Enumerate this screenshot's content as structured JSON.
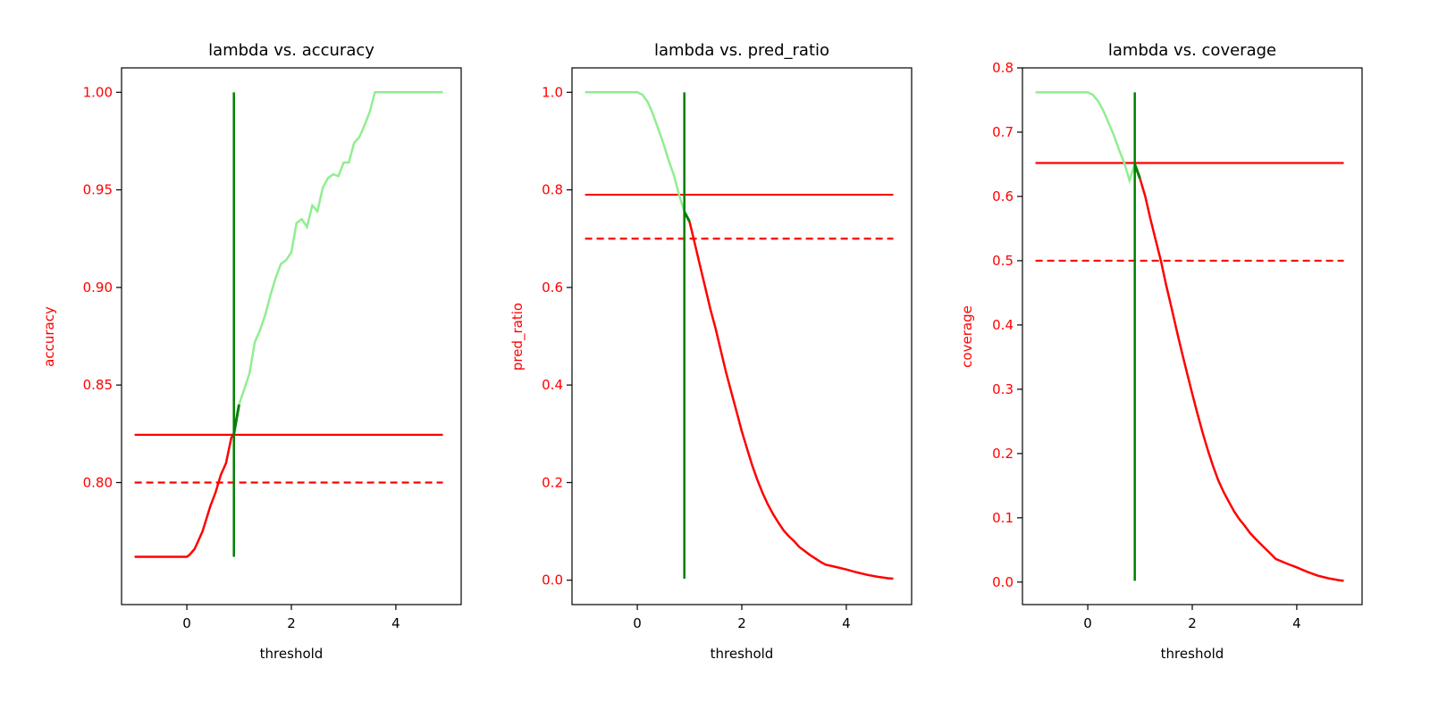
{
  "chart_data": [
    {
      "type": "line",
      "title": "lambda vs. accuracy",
      "xlabel": "threshold",
      "ylabel": "accuracy",
      "xlim": [
        -1.25,
        5.25
      ],
      "ylim": [
        0.7375,
        1.0125
      ],
      "xticks": [
        0,
        2,
        4
      ],
      "xtick_labels": [
        "0",
        "2",
        "4"
      ],
      "yticks": [
        0.8,
        0.85,
        0.9,
        0.95,
        1.0
      ],
      "ytick_labels": [
        "0.80",
        "0.85",
        "0.90",
        "0.95",
        "1.00"
      ],
      "curve": {
        "x": [
          -1,
          -0.6,
          -0.2,
          0,
          0.05,
          0.15,
          0.3,
          0.45,
          0.55,
          0.65,
          0.75,
          0.85,
          0.9,
          1.0,
          1.1,
          1.2,
          1.3,
          1.4,
          1.5,
          1.6,
          1.7,
          1.8,
          1.9,
          2.0,
          2.1,
          2.2,
          2.3,
          2.4,
          2.5,
          2.6,
          2.7,
          2.8,
          2.9,
          3.0,
          3.1,
          3.2,
          3.3,
          3.4,
          3.5,
          3.6,
          4.0,
          4.5,
          4.9
        ],
        "y": [
          0.762,
          0.762,
          0.762,
          0.762,
          0.763,
          0.766,
          0.775,
          0.788,
          0.795,
          0.804,
          0.81,
          0.823,
          0.825,
          0.84,
          0.848,
          0.856,
          0.872,
          0.878,
          0.886,
          0.896,
          0.905,
          0.912,
          0.914,
          0.918,
          0.933,
          0.935,
          0.931,
          0.942,
          0.939,
          0.951,
          0.956,
          0.958,
          0.957,
          0.964,
          0.964,
          0.974,
          0.977,
          0.983,
          0.99,
          1.0,
          1.0,
          1.0,
          1.0
        ],
        "highlight_from": 0.9,
        "highlight_to": 1.0
      },
      "hline_solid": 0.8245,
      "hline_dashed": 0.8,
      "vline": {
        "x": 0.9,
        "ymin": 0.762,
        "ymax": 1.0
      }
    },
    {
      "type": "line",
      "title": "lambda vs. pred_ratio",
      "xlabel": "threshold",
      "ylabel": "pred_ratio",
      "xlim": [
        -1.25,
        5.25
      ],
      "ylim": [
        -0.05,
        1.05
      ],
      "xticks": [
        0,
        2,
        4
      ],
      "xtick_labels": [
        "0",
        "2",
        "4"
      ],
      "yticks": [
        0.0,
        0.2,
        0.4,
        0.6,
        0.8,
        1.0
      ],
      "ytick_labels": [
        "0.0",
        "0.2",
        "0.4",
        "0.6",
        "0.8",
        "1.0"
      ],
      "curve": {
        "x": [
          -1,
          -0.5,
          0,
          0.1,
          0.2,
          0.3,
          0.4,
          0.5,
          0.6,
          0.7,
          0.8,
          0.9,
          1.0,
          1.1,
          1.2,
          1.3,
          1.4,
          1.5,
          1.6,
          1.7,
          1.8,
          1.9,
          2.0,
          2.1,
          2.2,
          2.3,
          2.4,
          2.5,
          2.6,
          2.7,
          2.8,
          2.9,
          3.0,
          3.1,
          3.2,
          3.3,
          3.4,
          3.5,
          3.6,
          3.8,
          4.0,
          4.2,
          4.4,
          4.6,
          4.8,
          4.9
        ],
        "y": [
          1.0,
          1.0,
          1.0,
          0.995,
          0.98,
          0.955,
          0.925,
          0.895,
          0.86,
          0.83,
          0.79,
          0.755,
          0.735,
          0.69,
          0.645,
          0.6,
          0.555,
          0.515,
          0.47,
          0.425,
          0.385,
          0.345,
          0.305,
          0.27,
          0.235,
          0.205,
          0.178,
          0.155,
          0.135,
          0.118,
          0.102,
          0.09,
          0.08,
          0.068,
          0.06,
          0.052,
          0.045,
          0.038,
          0.032,
          0.027,
          0.022,
          0.016,
          0.011,
          0.007,
          0.004,
          0.003
        ],
        "highlight_from": 0.9,
        "highlight_to": 1.0
      },
      "hline_solid": 0.79,
      "hline_dashed": 0.7,
      "vline": {
        "x": 0.9,
        "ymin": 0.003,
        "ymax": 1.0
      }
    },
    {
      "type": "line",
      "title": "lambda vs. coverage",
      "xlabel": "threshold",
      "ylabel": "coverage",
      "xlim": [
        -1.25,
        5.25
      ],
      "ylim": [
        -0.035,
        0.8
      ],
      "xticks": [
        0,
        2,
        4
      ],
      "xtick_labels": [
        "0",
        "2",
        "4"
      ],
      "yticks": [
        0.0,
        0.1,
        0.2,
        0.3,
        0.4,
        0.5,
        0.6,
        0.7,
        0.8
      ],
      "ytick_labels": [
        "0.0",
        "0.1",
        "0.2",
        "0.3",
        "0.4",
        "0.5",
        "0.6",
        "0.7",
        "0.8"
      ],
      "curve": {
        "x": [
          -1,
          -0.5,
          0,
          0.1,
          0.2,
          0.3,
          0.4,
          0.5,
          0.6,
          0.7,
          0.8,
          0.9,
          1.0,
          1.1,
          1.2,
          1.3,
          1.4,
          1.5,
          1.6,
          1.7,
          1.8,
          1.9,
          2.0,
          2.1,
          2.2,
          2.3,
          2.4,
          2.5,
          2.6,
          2.7,
          2.8,
          2.9,
          3.0,
          3.1,
          3.2,
          3.3,
          3.4,
          3.5,
          3.6,
          3.8,
          4.0,
          4.2,
          4.4,
          4.6,
          4.8,
          4.9
        ],
        "y": [
          0.762,
          0.762,
          0.762,
          0.758,
          0.748,
          0.733,
          0.714,
          0.695,
          0.672,
          0.652,
          0.625,
          0.65,
          0.628,
          0.6,
          0.565,
          0.532,
          0.5,
          0.462,
          0.428,
          0.392,
          0.358,
          0.325,
          0.293,
          0.262,
          0.232,
          0.205,
          0.18,
          0.158,
          0.14,
          0.125,
          0.11,
          0.098,
          0.088,
          0.077,
          0.068,
          0.06,
          0.052,
          0.044,
          0.036,
          0.029,
          0.023,
          0.016,
          0.01,
          0.006,
          0.003,
          0.002
        ],
        "highlight_from": 0.9,
        "highlight_to": 1.0
      },
      "hline_solid": 0.652,
      "hline_dashed": 0.5,
      "vline": {
        "x": 0.9,
        "ymin": 0.002,
        "ymax": 0.762
      }
    }
  ],
  "colors": {
    "axis_text": "#ff0000",
    "curve_main": "#ff0000",
    "curve_alt": "#90ee90",
    "highlight": "#008000",
    "hlines": "#ff0000",
    "vline": "#008000",
    "frame": "#000000"
  }
}
